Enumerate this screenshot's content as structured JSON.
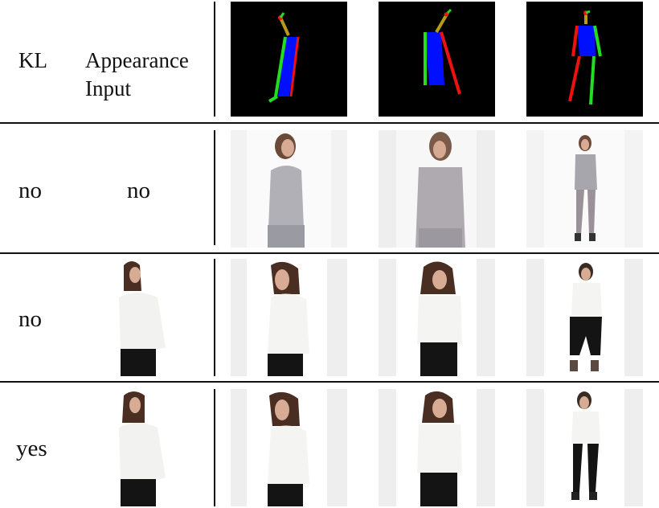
{
  "header": {
    "kl_label": "KL",
    "appearance_label_line1": "Appearance",
    "appearance_label_line2": "Input"
  },
  "rows": [
    {
      "kl": "no",
      "appearance_input": "no"
    },
    {
      "kl": "no"
    },
    {
      "kl": "yes"
    }
  ],
  "colors": {
    "pose_bg": "#000000",
    "torso": "#0010ff",
    "limb_left": "#22dd22",
    "limb_right": "#ee1111",
    "neck": "#b89a1a",
    "top_white": "#f4f4f2",
    "top_gray": "#a8a8ae",
    "jeans": "#141414",
    "hair": "#4a2e22",
    "skin": "#d8ac94"
  }
}
